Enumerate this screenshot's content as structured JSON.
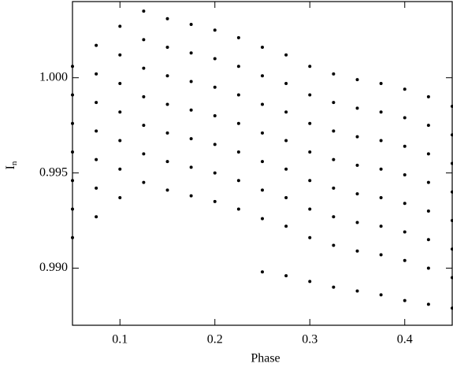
{
  "chart_data": {
    "type": "scatter",
    "xlabel": "Phase",
    "ylabel": "I",
    "ylabel_subscript": "n",
    "xlim": [
      0.05,
      0.45
    ],
    "ylim": [
      0.987,
      1.004
    ],
    "xticks": [
      0.1,
      0.2,
      0.3,
      0.4
    ],
    "yticks": [
      {
        "value": 0.99,
        "label": "0.990"
      },
      {
        "value": 0.995,
        "label": "0.995"
      },
      {
        "value": 1.0,
        "label": "1.000"
      }
    ],
    "series": [
      {
        "color": "#000000",
        "x": [
          0.05,
          0.075,
          0.1,
          0.125,
          0.15,
          0.175,
          0.2,
          0.225,
          0.25,
          0.275,
          0.3,
          0.325,
          0.35,
          0.375,
          0.4,
          0.425,
          0.45
        ],
        "values": [
          1.0006,
          1.0017,
          1.0027,
          1.0035,
          1.0031,
          1.0028,
          1.0025,
          1.0021,
          1.0016,
          1.0012,
          1.0006,
          1.0002,
          0.9999,
          0.9997,
          0.9994,
          0.999,
          0.9985
        ]
      },
      {
        "color": "#000000",
        "x": [
          0.05,
          0.075,
          0.1,
          0.125,
          0.15,
          0.175,
          0.2,
          0.225,
          0.25,
          0.275,
          0.3,
          0.325,
          0.35,
          0.375,
          0.4,
          0.425,
          0.45
        ],
        "values": [
          0.9991,
          1.0002,
          1.0012,
          1.002,
          1.0016,
          1.0013,
          1.001,
          1.0006,
          1.0001,
          0.9997,
          0.9991,
          0.9987,
          0.9984,
          0.9982,
          0.9979,
          0.9975,
          0.997
        ]
      },
      {
        "color": "#000000",
        "x": [
          0.05,
          0.075,
          0.1,
          0.125,
          0.15,
          0.175,
          0.2,
          0.225,
          0.25,
          0.275,
          0.3,
          0.325,
          0.35,
          0.375,
          0.4,
          0.425,
          0.45
        ],
        "values": [
          0.9976,
          0.9987,
          0.9997,
          1.0005,
          1.0001,
          0.9998,
          0.9995,
          0.9991,
          0.9986,
          0.9982,
          0.9976,
          0.9972,
          0.9969,
          0.9967,
          0.9964,
          0.996,
          0.9955
        ]
      },
      {
        "color": "#000000",
        "x": [
          0.05,
          0.075,
          0.1,
          0.125,
          0.15,
          0.175,
          0.2,
          0.225,
          0.25,
          0.275,
          0.3,
          0.325,
          0.35,
          0.375,
          0.4,
          0.425,
          0.45
        ],
        "values": [
          0.9961,
          0.9972,
          0.9982,
          0.999,
          0.9986,
          0.9983,
          0.998,
          0.9976,
          0.9971,
          0.9967,
          0.9961,
          0.9957,
          0.9954,
          0.9952,
          0.9949,
          0.9945,
          0.994
        ]
      },
      {
        "color": "#000000",
        "x": [
          0.05,
          0.075,
          0.1,
          0.125,
          0.15,
          0.175,
          0.2,
          0.225,
          0.25,
          0.275,
          0.3,
          0.325,
          0.35,
          0.375,
          0.4,
          0.425,
          0.45
        ],
        "values": [
          0.9946,
          0.9957,
          0.9967,
          0.9975,
          0.9971,
          0.9968,
          0.9965,
          0.9961,
          0.9956,
          0.9952,
          0.9946,
          0.9942,
          0.9939,
          0.9937,
          0.9934,
          0.993,
          0.9925
        ]
      },
      {
        "color": "#000000",
        "x": [
          0.05,
          0.075,
          0.1,
          0.125,
          0.15,
          0.175,
          0.2,
          0.225,
          0.25,
          0.275,
          0.3,
          0.325,
          0.35,
          0.375,
          0.4,
          0.425,
          0.45
        ],
        "values": [
          0.9931,
          0.9942,
          0.9952,
          0.996,
          0.9956,
          0.9953,
          0.995,
          0.9946,
          0.9941,
          0.9937,
          0.9931,
          0.9927,
          0.9924,
          0.9922,
          0.9919,
          0.9915,
          0.991
        ]
      },
      {
        "color": "#000000",
        "x": [
          0.05,
          0.075,
          0.1,
          0.125,
          0.15,
          0.175,
          0.2,
          0.225,
          0.25,
          0.275,
          0.3,
          0.325,
          0.35,
          0.375,
          0.4,
          0.425,
          0.45
        ],
        "values": [
          0.9916,
          0.9927,
          0.9937,
          0.9945,
          0.9941,
          0.9938,
          0.9935,
          0.9931,
          0.9926,
          0.9922,
          0.9916,
          0.9912,
          0.9909,
          0.9907,
          0.9904,
          0.99,
          0.9895
        ]
      },
      {
        "color": "#000000",
        "x": [
          0.25,
          0.275,
          0.3,
          0.325,
          0.35,
          0.375,
          0.4,
          0.425,
          0.45
        ],
        "values": [
          0.9898,
          0.9896,
          0.9893,
          0.989,
          0.9888,
          0.9886,
          0.9883,
          0.9881,
          0.9879
        ]
      }
    ]
  }
}
